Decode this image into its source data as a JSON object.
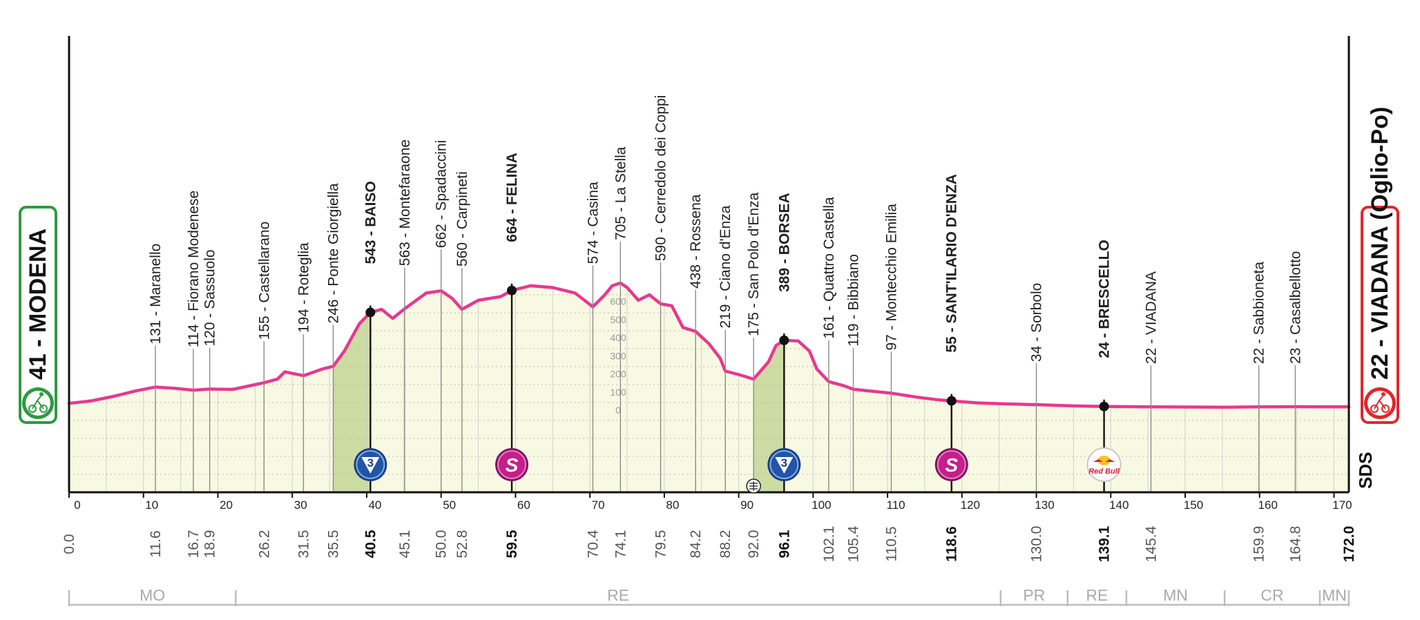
{
  "chart_data": {
    "type": "area",
    "title": "",
    "start": {
      "label": "41 - MODENA",
      "altitude": 41,
      "name": "MODENA"
    },
    "finish": {
      "label": "22 - VIADANA (Oglio-Po)",
      "altitude": 22,
      "name": "VIADANA (Oglio-Po)"
    },
    "xlabel": "",
    "ylabel": "",
    "x_range": [
      0,
      172.0
    ],
    "x_ticks": [
      0,
      10,
      20,
      30,
      40,
      50,
      60,
      70,
      80,
      90,
      100,
      110,
      120,
      130,
      140,
      150,
      160,
      170
    ],
    "y_ticks": [
      0,
      100,
      200,
      300,
      400,
      500,
      600
    ],
    "altitude_scale_labels": [
      "600",
      "500",
      "400",
      "300",
      "200",
      "100",
      "0"
    ],
    "profile": [
      [
        0,
        41
      ],
      [
        3,
        55
      ],
      [
        6,
        80
      ],
      [
        9,
        110
      ],
      [
        11.6,
        131
      ],
      [
        14,
        125
      ],
      [
        16.7,
        114
      ],
      [
        18.9,
        120
      ],
      [
        22,
        118
      ],
      [
        26.2,
        155
      ],
      [
        28,
        175
      ],
      [
        29,
        215
      ],
      [
        31.5,
        194
      ],
      [
        34,
        230
      ],
      [
        35.5,
        246
      ],
      [
        37,
        330
      ],
      [
        39,
        480
      ],
      [
        40.5,
        543
      ],
      [
        42,
        560
      ],
      [
        43.5,
        510
      ],
      [
        45.1,
        563
      ],
      [
        48,
        650
      ],
      [
        50,
        662
      ],
      [
        51.5,
        620
      ],
      [
        52.8,
        560
      ],
      [
        55,
        610
      ],
      [
        58,
        630
      ],
      [
        59.5,
        664
      ],
      [
        62,
        690
      ],
      [
        65,
        680
      ],
      [
        68,
        650
      ],
      [
        70.4,
        574
      ],
      [
        72,
        640
      ],
      [
        73,
        690
      ],
      [
        74.1,
        705
      ],
      [
        75,
        680
      ],
      [
        76.5,
        610
      ],
      [
        78,
        640
      ],
      [
        79.5,
        590
      ],
      [
        81,
        580
      ],
      [
        82.5,
        460
      ],
      [
        84.2,
        438
      ],
      [
        86,
        370
      ],
      [
        87.5,
        290
      ],
      [
        88.2,
        219
      ],
      [
        90,
        200
      ],
      [
        92,
        175
      ],
      [
        94,
        270
      ],
      [
        95,
        360
      ],
      [
        96.1,
        389
      ],
      [
        98,
        385
      ],
      [
        99.5,
        330
      ],
      [
        100.5,
        230
      ],
      [
        102.1,
        161
      ],
      [
        104,
        140
      ],
      [
        105.4,
        119
      ],
      [
        107,
        112
      ],
      [
        110.5,
        97
      ],
      [
        114,
        75
      ],
      [
        117,
        60
      ],
      [
        118.6,
        55
      ],
      [
        122,
        44
      ],
      [
        126,
        38
      ],
      [
        130,
        34
      ],
      [
        135,
        27
      ],
      [
        139.1,
        24
      ],
      [
        145.4,
        22
      ],
      [
        150,
        21
      ],
      [
        155,
        20
      ],
      [
        159.9,
        22
      ],
      [
        164.8,
        23
      ],
      [
        170,
        22
      ],
      [
        172,
        22
      ]
    ],
    "waypoints": [
      {
        "km": "0.0",
        "label": "",
        "bold": false,
        "line": false
      },
      {
        "km": "11.6",
        "label": "131 - Maranello",
        "bold": false,
        "line": true
      },
      {
        "km": "16.7",
        "label": "114 - Fiorano Modenese",
        "bold": false,
        "line": true
      },
      {
        "km": "18.9",
        "label": "120 - Sassuolo",
        "bold": false,
        "line": true
      },
      {
        "km": "26.2",
        "label": "155 - Castellarano",
        "bold": false,
        "line": true
      },
      {
        "km": "31.5",
        "label": "194 - Roteglia",
        "bold": false,
        "line": true
      },
      {
        "km": "35.5",
        "label": "246 - Ponte Giorgiella",
        "bold": false,
        "line": true
      },
      {
        "km": "40.5",
        "label": "543 - BAISO",
        "bold": true,
        "line": true
      },
      {
        "km": "45.1",
        "label": "563 - Montefaraone",
        "bold": false,
        "line": true
      },
      {
        "km": "50.0",
        "label": "662 - Spadaccini",
        "bold": false,
        "line": true
      },
      {
        "km": "52.8",
        "label": "560 - Carpineti",
        "bold": false,
        "line": true
      },
      {
        "km": "59.5",
        "label": "664 - FELINA",
        "bold": true,
        "line": true
      },
      {
        "km": "70.4",
        "label": "574 - Casina",
        "bold": false,
        "line": true
      },
      {
        "km": "74.1",
        "label": "705 - La Stella",
        "bold": false,
        "line": true
      },
      {
        "km": "79.5",
        "label": "590 - Cerredolo dei Coppi",
        "bold": false,
        "line": true
      },
      {
        "km": "84.2",
        "label": "438 - Rossena",
        "bold": false,
        "line": true
      },
      {
        "km": "88.2",
        "label": "219 - Ciano d'Enza",
        "bold": false,
        "line": true
      },
      {
        "km": "92.0",
        "label": "175 - San Polo d'Enza",
        "bold": false,
        "line": true
      },
      {
        "km": "96.1",
        "label": "389 - BORSEA",
        "bold": true,
        "line": true
      },
      {
        "km": "102.1",
        "label": "161 - Quattro Castella",
        "bold": false,
        "line": true
      },
      {
        "km": "105.4",
        "label": "119 - Bibbiano",
        "bold": false,
        "line": true
      },
      {
        "km": "110.5",
        "label": "97 - Montecchio Emilia",
        "bold": false,
        "line": true
      },
      {
        "km": "118.6",
        "label": "55 - SANT'ILARIO D'ENZA",
        "bold": true,
        "line": true
      },
      {
        "km": "130.0",
        "label": "34 - Sorbolo",
        "bold": false,
        "line": true
      },
      {
        "km": "139.1",
        "label": "24 - BRESCELLO",
        "bold": true,
        "line": true
      },
      {
        "km": "145.4",
        "label": "22 - VIADANA",
        "bold": false,
        "line": true
      },
      {
        "km": "159.9",
        "label": "22 - Sabbioneta",
        "bold": false,
        "line": true
      },
      {
        "km": "164.8",
        "label": "23 - Casalbellotto",
        "bold": false,
        "line": true
      },
      {
        "km": "172.0",
        "label": "",
        "bold": true,
        "line": false
      }
    ],
    "climbs": [
      {
        "start": 35.5,
        "end": 40.5
      },
      {
        "start": 92.0,
        "end": 96.1
      }
    ],
    "markers": [
      {
        "km": 40.5,
        "type": "kom",
        "text": "3"
      },
      {
        "km": 59.5,
        "type": "sprint",
        "text": "S"
      },
      {
        "km": 96.1,
        "type": "kom",
        "text": "3"
      },
      {
        "km": 118.6,
        "type": "sprint",
        "text": "S"
      },
      {
        "km": 139.1,
        "type": "redbull",
        "text": "Red Bull"
      }
    ],
    "provinces": [
      {
        "name": "MO",
        "from": 0,
        "to": 22.4
      },
      {
        "name": "RE",
        "from": 22.4,
        "to": 125.2
      },
      {
        "name": "PR",
        "from": 125.2,
        "to": 134.2
      },
      {
        "name": "RE",
        "from": 134.2,
        "to": 142.1
      },
      {
        "name": "MN",
        "from": 142.1,
        "to": 155.3
      },
      {
        "name": "CR",
        "from": 155.3,
        "to": 168.1
      },
      {
        "name": "MN",
        "from": 168.1,
        "to": 172.0
      }
    ],
    "brand": "SDS",
    "colors": {
      "profile_line": "#e7388f",
      "profile_fill": "#f8f9e2",
      "climb_fill": "#c9da9e",
      "kom_marker": "#2255a8",
      "sprint_marker": "#c41f8a",
      "start_box": "#2e9b3f",
      "finish_box": "#e0272b",
      "axis": "#111111",
      "grid": "#9a9a9a"
    }
  }
}
